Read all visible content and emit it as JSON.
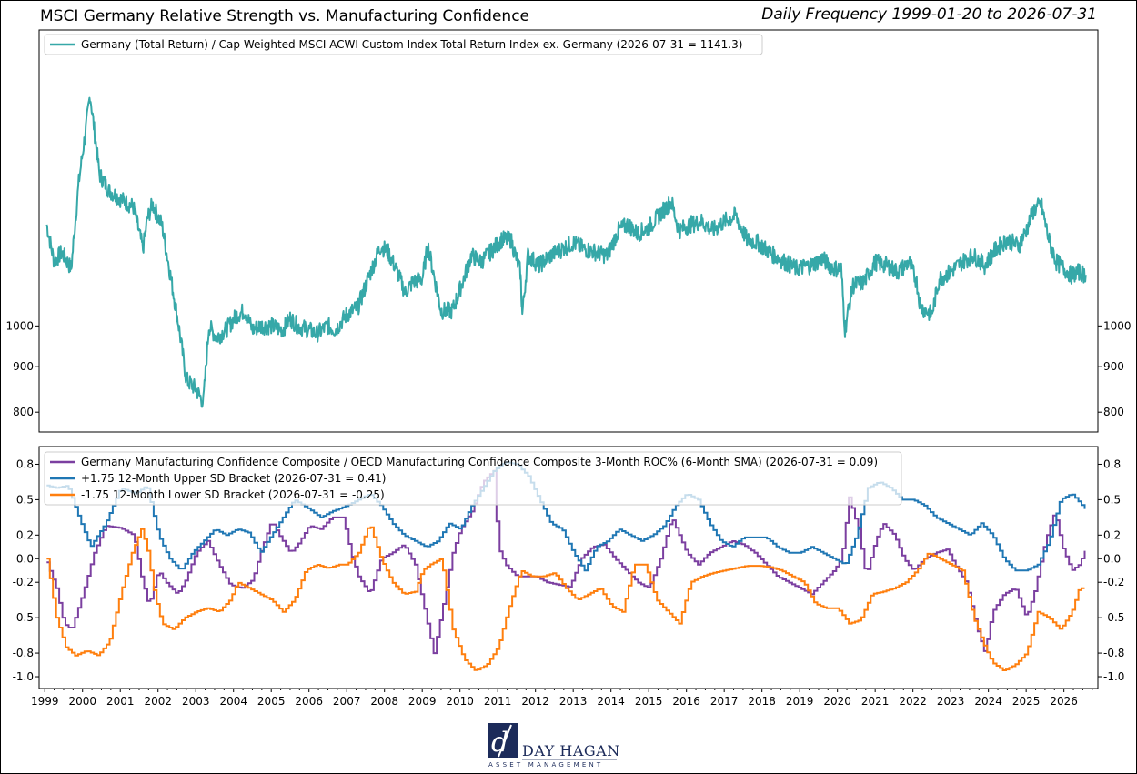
{
  "header": {
    "title": "MSCI Germany Relative Strength vs. Manufacturing Confidence",
    "date_range": "Daily Frequency 1999-01-20 to 2026-07-31"
  },
  "colors": {
    "teal": "#36a8a8",
    "purple": "#7b3fa0",
    "blue": "#1f77b4",
    "orange": "#ff7f0e"
  },
  "logo": {
    "icon": "dh-monogram-icon",
    "name": "DAY HAGAN",
    "subtitle": "ASSET MANAGEMENT"
  },
  "chart_data": [
    {
      "type": "line",
      "scale": "log",
      "y_ticks": [
        800,
        900,
        1000
      ],
      "ylim": [
        760,
        2150
      ],
      "series": [
        {
          "name": "Germany (Total Return) / Cap-Weighted MSCI ACWI Custom Index Total Return Index ex. Germany (2026-07-31 = 1141.3)",
          "color": "#36a8a8",
          "x": [
            1999.05,
            1999.25,
            1999.45,
            1999.7,
            1999.9,
            2000.1,
            2000.2,
            2000.45,
            2000.7,
            2001.0,
            2001.35,
            2001.6,
            2001.72,
            2001.85,
            2002.1,
            2002.3,
            2002.55,
            2002.75,
            2003.0,
            2003.2,
            2003.35,
            2003.55,
            2003.8,
            2004.1,
            2004.3,
            2004.5,
            2004.7,
            2005.0,
            2005.3,
            2005.5,
            2005.7,
            2006.0,
            2006.2,
            2006.5,
            2006.7,
            2007.0,
            2007.3,
            2007.6,
            2007.9,
            2008.1,
            2008.3,
            2008.55,
            2008.75,
            2009.0,
            2009.15,
            2009.5,
            2009.8,
            2010.1,
            2010.3,
            2010.55,
            2010.8,
            2011.1,
            2011.35,
            2011.6,
            2011.65,
            2011.8,
            2012.1,
            2012.4,
            2012.7,
            2013.0,
            2013.3,
            2013.6,
            2013.9,
            2014.2,
            2014.45,
            2014.7,
            2015.0,
            2015.2,
            2015.6,
            2015.8,
            2016.1,
            2016.4,
            2016.7,
            2017.0,
            2017.3,
            2017.6,
            2017.9,
            2018.2,
            2018.6,
            2018.9,
            2019.3,
            2019.6,
            2019.9,
            2020.1,
            2020.2,
            2020.4,
            2020.7,
            2021.0,
            2021.3,
            2021.6,
            2021.9,
            2022.1,
            2022.2,
            2022.5,
            2022.7,
            2023.0,
            2023.3,
            2023.6,
            2023.9,
            2024.2,
            2024.5,
            2024.8,
            2025.0,
            2025.2,
            2025.4,
            2025.6,
            2025.8,
            2026.0,
            2026.2,
            2026.4,
            2026.58
          ],
          "y": [
            1300,
            1180,
            1210,
            1160,
            1450,
            1680,
            1820,
            1480,
            1420,
            1390,
            1360,
            1220,
            1320,
            1370,
            1300,
            1160,
            1000,
            870,
            850,
            820,
            1000,
            970,
            990,
            1030,
            1040,
            990,
            1000,
            1000,
            990,
            1020,
            1000,
            990,
            980,
            1000,
            990,
            1030,
            1050,
            1140,
            1230,
            1210,
            1160,
            1090,
            1120,
            1130,
            1230,
            1040,
            1040,
            1130,
            1200,
            1180,
            1210,
            1250,
            1250,
            1150,
            1030,
            1200,
            1170,
            1200,
            1220,
            1240,
            1220,
            1210,
            1200,
            1280,
            1300,
            1270,
            1290,
            1320,
            1380,
            1280,
            1300,
            1310,
            1280,
            1310,
            1330,
            1250,
            1240,
            1210,
            1180,
            1160,
            1170,
            1190,
            1160,
            1160,
            990,
            1110,
            1120,
            1180,
            1170,
            1150,
            1180,
            1120,
            1050,
            1030,
            1130,
            1150,
            1180,
            1200,
            1170,
            1220,
            1250,
            1230,
            1280,
            1350,
            1370,
            1250,
            1180,
            1160,
            1140,
            1150,
            1141.3
          ]
        }
      ]
    },
    {
      "type": "line",
      "ylim": [
        -1.1,
        0.95
      ],
      "y_ticks": [
        -1.0,
        -0.8,
        -0.5,
        -0.2,
        0.0,
        0.2,
        0.5,
        0.8
      ],
      "y_tick_labels": [
        "-1.0",
        "-0.8",
        "-0.5",
        "-0.2",
        "0.0",
        "0.2",
        "0.5",
        "0.8"
      ],
      "x_ticks": [
        1999,
        2000,
        2001,
        2002,
        2003,
        2004,
        2005,
        2006,
        2007,
        2008,
        2009,
        2010,
        2011,
        2012,
        2013,
        2014,
        2015,
        2016,
        2017,
        2018,
        2019,
        2020,
        2021,
        2022,
        2023,
        2024,
        2025,
        2026
      ],
      "xlim": [
        1998.85,
        2026.9
      ],
      "legend": "top-left",
      "series": [
        {
          "name": "Germany Manufacturing Confidence Composite / OECD  Manufacturing Confidence Composite 3-Month ROC% (6-Month SMA) (2026-07-31 = 0.09)",
          "color": "#7b3fa0",
          "x": [
            1999.05,
            1999.3,
            1999.5,
            1999.7,
            2000.0,
            2000.3,
            2000.6,
            2001.0,
            2001.35,
            2001.55,
            2001.75,
            2002.0,
            2002.2,
            2002.5,
            2002.7,
            2003.0,
            2003.3,
            2003.6,
            2003.9,
            2004.2,
            2004.5,
            2004.7,
            2005.0,
            2005.2,
            2005.5,
            2005.7,
            2006.0,
            2006.3,
            2006.6,
            2006.9,
            2007.1,
            2007.3,
            2007.6,
            2007.9,
            2008.2,
            2008.5,
            2008.8,
            2009.1,
            2009.3,
            2009.6,
            2009.8,
            2010.0,
            2010.3,
            2010.6,
            2010.9,
            2011.0,
            2011.2,
            2011.5,
            2011.8,
            2012.0,
            2012.3,
            2012.6,
            2012.9,
            2013.2,
            2013.5,
            2013.8,
            2014.1,
            2014.4,
            2014.7,
            2015.0,
            2015.3,
            2015.6,
            2015.8,
            2016.0,
            2016.3,
            2016.6,
            2016.9,
            2017.2,
            2017.5,
            2017.8,
            2018.1,
            2018.4,
            2018.7,
            2019.0,
            2019.3,
            2019.6,
            2019.9,
            2020.1,
            2020.3,
            2020.55,
            2020.75,
            2021.0,
            2021.2,
            2021.5,
            2021.75,
            2022.0,
            2022.3,
            2022.6,
            2022.9,
            2023.1,
            2023.4,
            2023.7,
            2023.9,
            2024.1,
            2024.4,
            2024.7,
            2025.0,
            2025.2,
            2025.5,
            2025.75,
            2025.95,
            2026.2,
            2026.4,
            2026.58
          ],
          "y": [
            -0.03,
            -0.25,
            -0.55,
            -0.6,
            -0.3,
            0.05,
            0.28,
            0.26,
            0.2,
            -0.15,
            -0.4,
            -0.1,
            -0.2,
            -0.3,
            -0.2,
            0.05,
            0.15,
            -0.05,
            -0.22,
            -0.25,
            -0.18,
            0.05,
            0.32,
            0.2,
            0.05,
            0.12,
            0.28,
            0.25,
            0.35,
            0.35,
            0.05,
            -0.15,
            -0.3,
            0.0,
            0.05,
            0.12,
            -0.05,
            -0.5,
            -0.8,
            -0.3,
            0.05,
            0.25,
            0.4,
            0.65,
            0.75,
            0.1,
            -0.05,
            -0.15,
            -0.15,
            -0.15,
            -0.2,
            -0.22,
            -0.24,
            0.0,
            0.1,
            0.12,
            0.0,
            -0.1,
            -0.2,
            -0.25,
            0.0,
            0.35,
            0.2,
            0.05,
            -0.05,
            0.05,
            0.1,
            0.15,
            0.12,
            0.05,
            -0.05,
            -0.15,
            -0.2,
            -0.25,
            -0.3,
            -0.2,
            -0.1,
            0.0,
            0.52,
            0.25,
            -0.15,
            0.15,
            0.3,
            0.2,
            0.0,
            -0.1,
            0.0,
            0.05,
            0.08,
            -0.05,
            -0.2,
            -0.6,
            -0.8,
            -0.45,
            -0.3,
            -0.25,
            -0.5,
            -0.3,
            0.15,
            0.4,
            0.1,
            -0.1,
            -0.05,
            0.09
          ]
        },
        {
          "name": "+1.75 12-Month Upper SD Bracket (2026-07-31 = 0.41)",
          "color": "#1f77b4",
          "x": [
            1999.05,
            1999.3,
            1999.6,
            1999.9,
            2000.2,
            2000.6,
            2001.0,
            2001.4,
            2001.7,
            2002.0,
            2002.3,
            2002.6,
            2002.9,
            2003.2,
            2003.5,
            2003.8,
            2004.1,
            2004.4,
            2004.7,
            2005.0,
            2005.3,
            2005.6,
            2006.0,
            2006.3,
            2006.6,
            2007.0,
            2007.3,
            2007.6,
            2007.9,
            2008.2,
            2008.5,
            2008.8,
            2009.1,
            2009.4,
            2009.7,
            2010.0,
            2010.3,
            2010.6,
            2010.9,
            2011.2,
            2011.5,
            2011.8,
            2012.1,
            2012.4,
            2012.7,
            2013.0,
            2013.3,
            2013.6,
            2013.9,
            2014.2,
            2014.5,
            2014.8,
            2015.1,
            2015.4,
            2015.7,
            2016.0,
            2016.3,
            2016.6,
            2016.9,
            2017.2,
            2017.5,
            2017.8,
            2018.1,
            2018.4,
            2018.7,
            2019.0,
            2019.3,
            2019.6,
            2019.9,
            2020.2,
            2020.5,
            2020.8,
            2021.1,
            2021.4,
            2021.7,
            2022.0,
            2022.3,
            2022.6,
            2022.9,
            2023.2,
            2023.5,
            2023.8,
            2024.1,
            2024.4,
            2024.7,
            2025.0,
            2025.3,
            2025.6,
            2025.9,
            2026.2,
            2026.4,
            2026.58
          ],
          "y": [
            0.62,
            0.6,
            0.62,
            0.35,
            0.1,
            0.3,
            0.6,
            0.55,
            0.62,
            0.2,
            0.0,
            -0.1,
            0.05,
            0.15,
            0.25,
            0.2,
            0.25,
            0.22,
            0.05,
            0.2,
            0.35,
            0.5,
            0.42,
            0.35,
            0.4,
            0.45,
            0.5,
            0.55,
            0.45,
            0.3,
            0.2,
            0.15,
            0.1,
            0.15,
            0.3,
            0.25,
            0.45,
            0.6,
            0.75,
            0.82,
            0.8,
            0.7,
            0.5,
            0.3,
            0.25,
            0.05,
            -0.1,
            0.1,
            0.15,
            0.25,
            0.2,
            0.15,
            0.2,
            0.28,
            0.45,
            0.55,
            0.5,
            0.3,
            0.15,
            0.1,
            0.18,
            0.18,
            0.18,
            0.1,
            0.05,
            0.05,
            0.1,
            0.05,
            0.0,
            -0.05,
            0.2,
            0.6,
            0.65,
            0.6,
            0.5,
            0.5,
            0.45,
            0.35,
            0.3,
            0.25,
            0.2,
            0.3,
            0.2,
            0.0,
            -0.1,
            -0.1,
            -0.05,
            0.15,
            0.5,
            0.55,
            0.48,
            0.41
          ]
        },
        {
          "name": "-1.75 12-Month Lower SD Bracket (2026-07-31 = -0.25)",
          "color": "#ff7f0e",
          "x": [
            1999.05,
            1999.3,
            1999.55,
            1999.8,
            2000.1,
            2000.4,
            2000.7,
            2001.0,
            2001.3,
            2001.55,
            2001.7,
            2001.9,
            2002.1,
            2002.4,
            2002.7,
            2003.0,
            2003.3,
            2003.6,
            2003.9,
            2004.1,
            2004.4,
            2004.7,
            2005.0,
            2005.3,
            2005.6,
            2005.9,
            2006.2,
            2006.5,
            2006.8,
            2007.0,
            2007.3,
            2007.6,
            2007.9,
            2008.2,
            2008.5,
            2008.8,
            2009.0,
            2009.2,
            2009.5,
            2009.8,
            2010.1,
            2010.4,
            2010.7,
            2011.0,
            2011.3,
            2011.6,
            2011.9,
            2012.2,
            2012.5,
            2012.8,
            2013.1,
            2013.4,
            2013.7,
            2014.0,
            2014.3,
            2014.6,
            2014.9,
            2015.2,
            2015.5,
            2015.8,
            2016.1,
            2016.4,
            2016.7,
            2017.0,
            2017.3,
            2017.6,
            2017.9,
            2018.2,
            2018.5,
            2018.8,
            2019.1,
            2019.4,
            2019.7,
            2020.0,
            2020.3,
            2020.6,
            2020.9,
            2021.2,
            2021.5,
            2021.8,
            2022.1,
            2022.4,
            2022.7,
            2023.0,
            2023.3,
            2023.6,
            2023.9,
            2024.1,
            2024.4,
            2024.7,
            2025.0,
            2025.3,
            2025.6,
            2025.9,
            2026.2,
            2026.4,
            2026.58
          ],
          "y": [
            0.0,
            -0.5,
            -0.75,
            -0.82,
            -0.78,
            -0.82,
            -0.7,
            -0.3,
            0.05,
            0.25,
            0.1,
            -0.3,
            -0.55,
            -0.6,
            -0.5,
            -0.45,
            -0.42,
            -0.45,
            -0.35,
            -0.2,
            -0.25,
            -0.3,
            -0.35,
            -0.45,
            -0.35,
            -0.1,
            -0.05,
            -0.08,
            -0.05,
            -0.05,
            0.05,
            0.3,
            0.0,
            -0.2,
            -0.3,
            -0.28,
            -0.1,
            -0.05,
            0.0,
            -0.6,
            -0.85,
            -0.95,
            -0.9,
            -0.75,
            -0.4,
            -0.1,
            -0.15,
            -0.15,
            -0.12,
            -0.25,
            -0.35,
            -0.3,
            -0.25,
            -0.4,
            -0.45,
            -0.05,
            -0.05,
            -0.35,
            -0.45,
            -0.55,
            -0.2,
            -0.15,
            -0.12,
            -0.1,
            -0.08,
            -0.06,
            -0.06,
            -0.07,
            -0.1,
            -0.15,
            -0.2,
            -0.38,
            -0.42,
            -0.42,
            -0.55,
            -0.52,
            -0.3,
            -0.28,
            -0.25,
            -0.2,
            -0.1,
            0.05,
            0.0,
            -0.05,
            -0.1,
            -0.5,
            -0.75,
            -0.88,
            -0.95,
            -0.9,
            -0.8,
            -0.45,
            -0.5,
            -0.6,
            -0.45,
            -0.25,
            -0.25
          ]
        }
      ]
    }
  ]
}
